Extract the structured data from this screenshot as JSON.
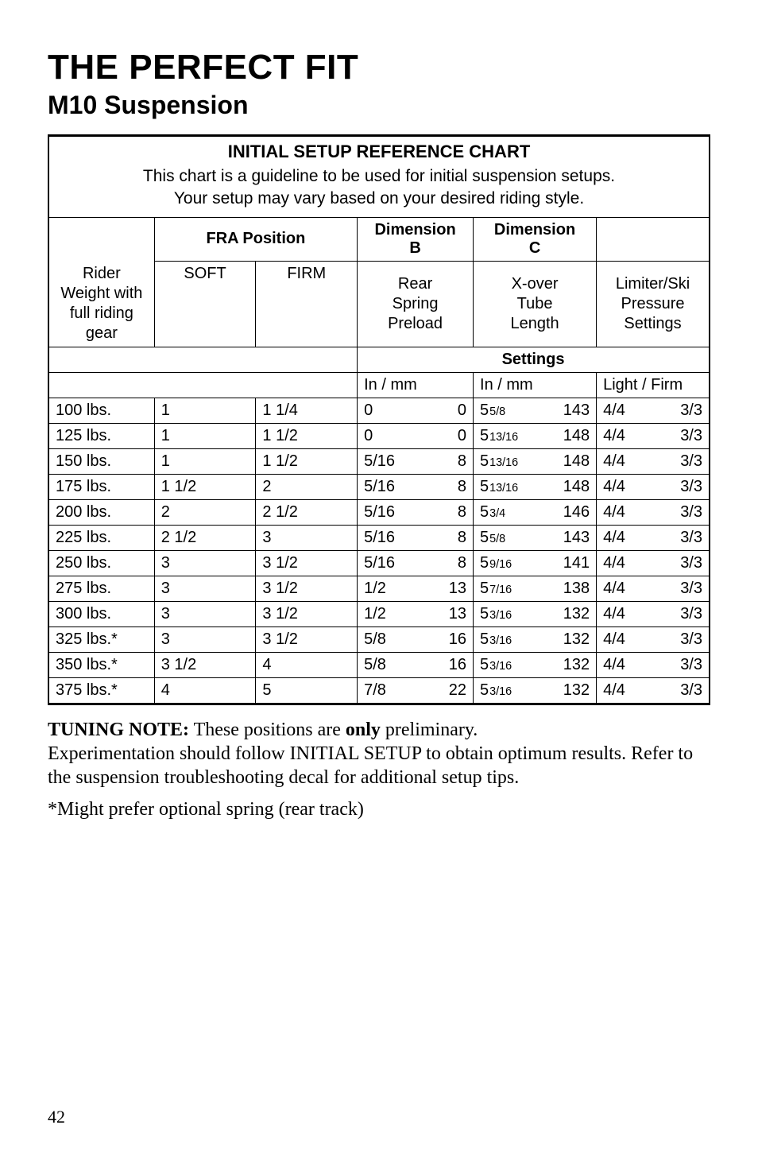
{
  "title": "THE PERFECT FIT",
  "subtitle": "M10 Suspension",
  "page_number": "42",
  "chart": {
    "title": "INITIAL SETUP REFERENCE CHART",
    "note_line1": "This chart is a guideline to be used for initial suspension setups.",
    "note_line2": "Your setup may vary based on your desired riding style.",
    "h_fra": "FRA Position",
    "h_dimB": "Dimension B",
    "h_dimC": "Dimension C",
    "h_rider": "Rider Weight with full riding gear",
    "h_soft": "SOFT",
    "h_firm": "FIRM",
    "h_rear": "Rear Spring Preload",
    "h_xover": "X-over Tube Length",
    "h_limiter": "Limiter/Ski Pressure Settings",
    "h_settings": "Settings",
    "u_inmm1": "In / mm",
    "u_inmm2": "In / mm",
    "u_lightfirm": "Light / Firm",
    "rows": [
      {
        "w": "100 lbs.",
        "soft": "1",
        "firm": "1 1/4",
        "b_in": "0",
        "b_mm": "0",
        "c_in_whole": "5",
        "c_in_frac": "5/8",
        "c_mm": "143",
        "l1": "4/4",
        "l2": "3/3"
      },
      {
        "w": "125 lbs.",
        "soft": "1",
        "firm": "1 1/2",
        "b_in": "0",
        "b_mm": "0",
        "c_in_whole": "5",
        "c_in_frac": "13/16",
        "c_mm": "148",
        "l1": "4/4",
        "l2": "3/3"
      },
      {
        "w": "150 lbs.",
        "soft": "1",
        "firm": "1 1/2",
        "b_in": "5/16",
        "b_mm": "8",
        "c_in_whole": "5",
        "c_in_frac": "13/16",
        "c_mm": "148",
        "l1": "4/4",
        "l2": "3/3"
      },
      {
        "w": "175 lbs.",
        "soft": "1 1/2",
        "firm": "2",
        "b_in": "5/16",
        "b_mm": "8",
        "c_in_whole": "5",
        "c_in_frac": "13/16",
        "c_mm": "148",
        "l1": "4/4",
        "l2": "3/3"
      },
      {
        "w": "200 lbs.",
        "soft": "2",
        "firm": "2 1/2",
        "b_in": "5/16",
        "b_mm": "8",
        "c_in_whole": "5",
        "c_in_frac": "3/4",
        "c_mm": "146",
        "l1": "4/4",
        "l2": "3/3"
      },
      {
        "w": "225 lbs.",
        "soft": "2 1/2",
        "firm": "3",
        "b_in": "5/16",
        "b_mm": "8",
        "c_in_whole": "5",
        "c_in_frac": "5/8",
        "c_mm": "143",
        "l1": "4/4",
        "l2": "3/3"
      },
      {
        "w": "250 lbs.",
        "soft": "3",
        "firm": "3 1/2",
        "b_in": "5/16",
        "b_mm": "8",
        "c_in_whole": "5",
        "c_in_frac": "9/16",
        "c_mm": "141",
        "l1": "4/4",
        "l2": "3/3"
      },
      {
        "w": "275 lbs.",
        "soft": "3",
        "firm": "3 1/2",
        "b_in": "1/2",
        "b_mm": "13",
        "c_in_whole": "5",
        "c_in_frac": "7/16",
        "c_mm": "138",
        "l1": "4/4",
        "l2": "3/3"
      },
      {
        "w": "300 lbs.",
        "soft": "3",
        "firm": "3 1/2",
        "b_in": "1/2",
        "b_mm": "13",
        "c_in_whole": "5",
        "c_in_frac": "3/16",
        "c_mm": "132",
        "l1": "4/4",
        "l2": "3/3"
      },
      {
        "w": "325 lbs.*",
        "soft": "3",
        "firm": "3 1/2",
        "b_in": "5/8",
        "b_mm": "16",
        "c_in_whole": "5",
        "c_in_frac": "3/16",
        "c_mm": "132",
        "l1": "4/4",
        "l2": "3/3"
      },
      {
        "w": "350 lbs.*",
        "soft": "3 1/2",
        "firm": "4",
        "b_in": "5/8",
        "b_mm": "16",
        "c_in_whole": "5",
        "c_in_frac": "3/16",
        "c_mm": "132",
        "l1": "4/4",
        "l2": "3/3"
      },
      {
        "w": "375 lbs.*",
        "soft": "4",
        "firm": "5",
        "b_in": "7/8",
        "b_mm": "22",
        "c_in_whole": "5",
        "c_in_frac": "3/16",
        "c_mm": "132",
        "l1": "4/4",
        "l2": "3/3"
      }
    ]
  },
  "tuning": {
    "label": "TUNING NOTE:",
    "sentence1_a": "  These positions are ",
    "sentence1_only": "only",
    "sentence1_b": " preliminary.",
    "sentence2": "Experimentation should follow INITIAL SETUP to obtain optimum results.  Refer to the suspension troubleshooting decal for additional setup tips."
  },
  "star_note": "*Might prefer optional spring (rear track)"
}
